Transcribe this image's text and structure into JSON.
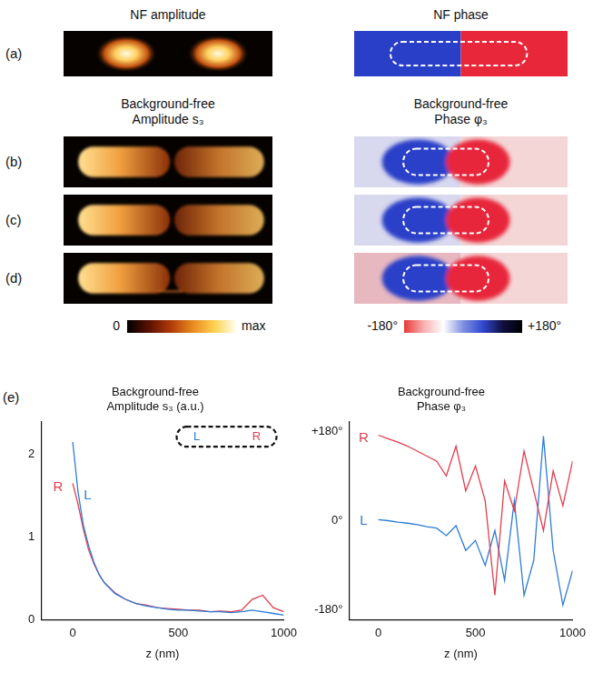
{
  "figure": {
    "sections": [
      {
        "left_title": [
          "NF amplitude"
        ],
        "right_title": [
          "NF phase"
        ],
        "rows": [
          "(a)"
        ]
      },
      {
        "left_title": [
          "Background-free",
          "Amplitude s₃"
        ],
        "right_title": [
          "Background-free",
          "Phase φ₃"
        ],
        "rows": [
          "(b)",
          "(c)",
          "(d)"
        ]
      }
    ],
    "amplitude_colorbar": {
      "min_label": "0",
      "max_label": "max"
    },
    "phase_colorbar": {
      "min_label": "-180°",
      "max_label": "+180°"
    },
    "panel_label": "(e)"
  },
  "chart_data": [
    {
      "type": "line",
      "title": [
        "Background-free",
        "Amplitude s₃ (a.u.)"
      ],
      "x_label": "z (nm)",
      "x": [
        0,
        25,
        50,
        75,
        100,
        125,
        150,
        200,
        250,
        300,
        350,
        400,
        450,
        500,
        550,
        600,
        650,
        700,
        750,
        800,
        850,
        900,
        950,
        1000
      ],
      "series": [
        {
          "name": "L",
          "color": "#2b7bd6",
          "label_at": {
            "x": 70,
            "y": 1.5
          },
          "values": [
            2.15,
            1.55,
            1.15,
            0.9,
            0.7,
            0.55,
            0.45,
            0.32,
            0.25,
            0.2,
            0.17,
            0.15,
            0.13,
            0.12,
            0.12,
            0.11,
            0.1,
            0.1,
            0.09,
            0.1,
            0.12,
            0.1,
            0.08,
            0.06
          ]
        },
        {
          "name": "R",
          "color": "#e23c4e",
          "label_at": {
            "x": -70,
            "y": 1.6
          },
          "values": [
            1.65,
            1.4,
            1.1,
            0.85,
            0.68,
            0.55,
            0.45,
            0.33,
            0.25,
            0.2,
            0.18,
            0.15,
            0.14,
            0.13,
            0.12,
            0.12,
            0.1,
            0.11,
            0.1,
            0.12,
            0.25,
            0.3,
            0.15,
            0.1
          ]
        }
      ],
      "inset": [
        "L",
        "R"
      ],
      "xlim": [
        -150,
        1000
      ],
      "xticks": [
        0,
        500,
        1000
      ],
      "ylim": [
        0,
        2.4
      ],
      "yticks": [
        0,
        1,
        2
      ],
      "grid": false
    },
    {
      "type": "line",
      "title": [
        "Background-free",
        "Phase φ₃"
      ],
      "x_label": "z (nm)",
      "x": [
        0,
        50,
        100,
        150,
        200,
        250,
        300,
        350,
        400,
        450,
        500,
        550,
        600,
        650,
        700,
        750,
        800,
        850,
        900,
        950,
        1000
      ],
      "series": [
        {
          "name": "R",
          "color": "#e23c4e",
          "label_at": {
            "x": -75,
            "y": 165
          },
          "values": [
            172,
            165,
            158,
            150,
            140,
            130,
            120,
            90,
            150,
            60,
            110,
            40,
            -150,
            80,
            20,
            140,
            60,
            -20,
            100,
            30,
            120
          ]
        },
        {
          "name": "L",
          "color": "#2b7bd6",
          "label_at": {
            "x": -75,
            "y": 0
          },
          "values": [
            2,
            0,
            -3,
            -5,
            -8,
            -12,
            -15,
            -30,
            -10,
            -60,
            -40,
            -90,
            -20,
            -120,
            40,
            -150,
            -80,
            170,
            -60,
            -170,
            -100
          ]
        }
      ],
      "xlim": [
        -150,
        1000
      ],
      "xticks": [
        0,
        500,
        1000
      ],
      "ylim": [
        -200,
        200
      ],
      "yticks": [
        {
          "value": -180,
          "label": "-180°"
        },
        {
          "value": 0,
          "label": "0°"
        },
        {
          "value": 180,
          "label": "+180°"
        }
      ],
      "grid": false
    }
  ]
}
